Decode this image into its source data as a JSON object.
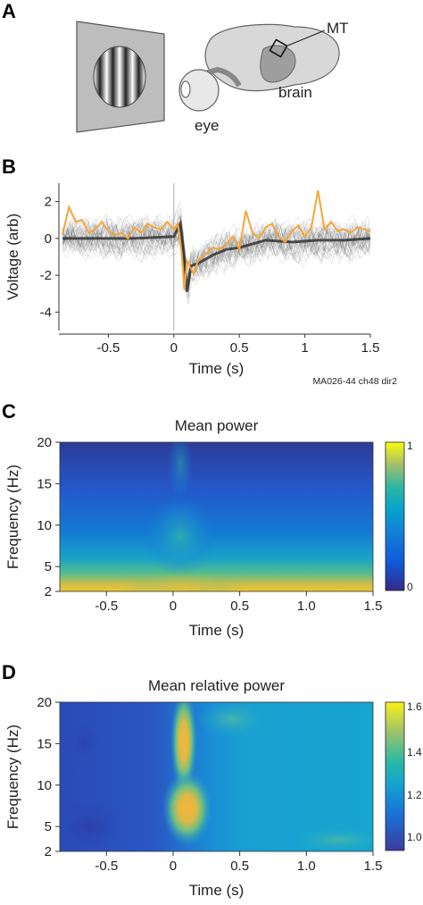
{
  "panels": {
    "a": "A",
    "b": "B",
    "c": "C",
    "d": "D"
  },
  "schematic": {
    "mt_label": "MT",
    "brain_label": "brain",
    "eye_label": "eye"
  },
  "chart_data": [
    {
      "type": "line",
      "panel": "B",
      "xlabel": "Time (s)",
      "ylabel": "Voltage (arb)",
      "annotation": "MA026-44 ch48 dir2",
      "xlim": [
        -0.85,
        1.5
      ],
      "ylim": [
        -5,
        3
      ],
      "xticks": [
        "-0.5",
        "0",
        "0.5",
        "1",
        "1.5"
      ],
      "yticks": [
        "2",
        "0",
        "-2",
        "-4"
      ],
      "highlight_color": "#f5a53a",
      "trials_color": "#3a3a3a",
      "highlight_trace": {
        "x": [
          -0.85,
          -0.8,
          -0.75,
          -0.7,
          -0.65,
          -0.6,
          -0.55,
          -0.5,
          -0.45,
          -0.4,
          -0.35,
          -0.3,
          -0.25,
          -0.2,
          -0.15,
          -0.1,
          -0.05,
          0.0,
          0.03,
          0.06,
          0.08,
          0.1,
          0.12,
          0.15,
          0.18,
          0.2,
          0.25,
          0.3,
          0.35,
          0.4,
          0.45,
          0.5,
          0.55,
          0.6,
          0.65,
          0.7,
          0.75,
          0.8,
          0.85,
          0.9,
          0.95,
          1.0,
          1.05,
          1.1,
          1.15,
          1.2,
          1.25,
          1.3,
          1.35,
          1.4,
          1.45,
          1.5
        ],
        "y": [
          0.2,
          1.7,
          0.9,
          1.0,
          0.3,
          0.5,
          0.9,
          0.4,
          0.2,
          0.3,
          0.0,
          0.6,
          0.3,
          0.8,
          0.6,
          0.5,
          0.9,
          0.5,
          0.8,
          -0.8,
          -2.8,
          -1.2,
          -1.5,
          -1.9,
          -1.3,
          -1.1,
          -0.8,
          -0.5,
          -0.6,
          -0.3,
          0.1,
          -0.6,
          1.5,
          0.3,
          0.0,
          0.6,
          0.8,
          0.1,
          -0.2,
          0.4,
          0.7,
          0.1,
          0.6,
          2.6,
          0.5,
          0.9,
          0.4,
          0.5,
          0.3,
          0.6,
          0.5,
          0.4
        ]
      },
      "mean_trace": {
        "x": [
          -0.85,
          -0.6,
          -0.3,
          0.0,
          0.05,
          0.08,
          0.1,
          0.13,
          0.2,
          0.3,
          0.4,
          0.5,
          0.7,
          0.9,
          1.1,
          1.3,
          1.5
        ],
        "y": [
          0.0,
          0.0,
          0.0,
          0.1,
          0.8,
          -1.0,
          -2.9,
          -1.5,
          -1.3,
          -0.9,
          -0.6,
          -0.5,
          -0.1,
          -0.2,
          -0.1,
          -0.1,
          0.0
        ]
      }
    },
    {
      "type": "heatmap",
      "panel": "C",
      "title": "Mean power",
      "xlabel": "Time (s)",
      "ylabel": "Frequency (Hz)",
      "xlim": [
        -0.85,
        1.5
      ],
      "ylim": [
        2,
        20
      ],
      "xticks": [
        "-0.5",
        "0",
        "0.5",
        "1.0",
        "1.5"
      ],
      "yticks": [
        "20",
        "15",
        "10",
        "5",
        "2"
      ],
      "colorbar": {
        "min": "0",
        "max": "1",
        "colormap": "parula"
      }
    },
    {
      "type": "heatmap",
      "panel": "D",
      "title": "Mean relative power",
      "xlabel": "Time (s)",
      "ylabel": "Frequency (Hz)",
      "xlim": [
        -0.85,
        1.5
      ],
      "ylim": [
        2,
        20
      ],
      "xticks": [
        "-0.5",
        "0",
        "0.5",
        "1.0",
        "1.5"
      ],
      "yticks": [
        "20",
        "15",
        "10",
        "5",
        "2"
      ],
      "colorbar": {
        "ticks": [
          "1.6",
          "1.4",
          "1.2",
          "1.0"
        ],
        "colormap": "parula"
      }
    }
  ]
}
